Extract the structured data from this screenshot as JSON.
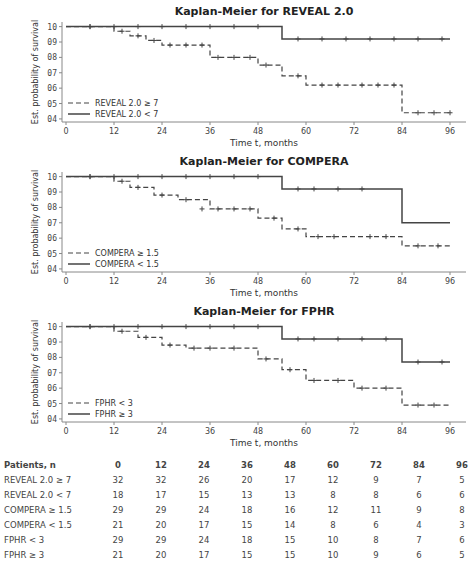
{
  "chart_data": [
    {
      "type": "step",
      "title": "Kaplan-Meier for REVEAL 2.0",
      "x_label": "Time t, months",
      "y_label": "Est. probability of survival",
      "xlim": [
        -1,
        100
      ],
      "ylim": [
        0.38,
        1.03
      ],
      "xticks": [
        0,
        12,
        24,
        36,
        48,
        60,
        72,
        84,
        96
      ],
      "yticks": [
        {
          "value": 0.4,
          "label": "04"
        },
        {
          "value": 0.5,
          "label": "05"
        },
        {
          "value": 0.6,
          "label": "06"
        },
        {
          "value": 0.7,
          "label": "07"
        },
        {
          "value": 0.8,
          "label": "08"
        },
        {
          "value": 0.9,
          "label": "09"
        },
        {
          "value": 1.0,
          "label": "10"
        }
      ],
      "grid": false,
      "legend": "lower left",
      "series": [
        {
          "name": "REVEAL 2.0 ≥ 7",
          "type": "step",
          "line_style": "dashed",
          "color": "#444444",
          "x": [
            0,
            12,
            12,
            16,
            16,
            20,
            20,
            24,
            24,
            36,
            36,
            48,
            48,
            54,
            54,
            60,
            60,
            72,
            72,
            84,
            84,
            96
          ],
          "values": [
            1.0,
            1.0,
            0.97,
            0.97,
            0.94,
            0.94,
            0.91,
            0.91,
            0.88,
            0.88,
            0.8,
            0.8,
            0.75,
            0.75,
            0.68,
            0.68,
            0.62,
            0.62,
            0.62,
            0.62,
            0.44,
            0.44
          ]
        },
        {
          "type": "scatter",
          "marker": "plus",
          "color": "#444444",
          "x": [
            6,
            14,
            18,
            22,
            26,
            30,
            34,
            38,
            42,
            46,
            50,
            58,
            64,
            68,
            74,
            78,
            82,
            88,
            92,
            96
          ],
          "values": [
            1.0,
            0.97,
            0.94,
            0.91,
            0.88,
            0.88,
            0.88,
            0.8,
            0.8,
            0.8,
            0.75,
            0.68,
            0.62,
            0.62,
            0.62,
            0.62,
            0.62,
            0.44,
            0.44,
            0.44
          ]
        },
        {
          "name": "REVEAL 2.0 < 7",
          "type": "step",
          "line_style": "solid",
          "color": "#444444",
          "x": [
            0,
            54,
            54,
            96
          ],
          "values": [
            1.0,
            1.0,
            0.92,
            0.92
          ]
        },
        {
          "type": "scatter",
          "marker": "plus",
          "color": "#444444",
          "x": [
            6,
            12,
            18,
            24,
            30,
            36,
            42,
            48,
            58,
            64,
            70,
            76,
            82,
            88,
            94
          ],
          "values": [
            1.0,
            1.0,
            1.0,
            1.0,
            1.0,
            1.0,
            1.0,
            1.0,
            0.92,
            0.92,
            0.92,
            0.92,
            0.92,
            0.92,
            0.92
          ]
        }
      ]
    },
    {
      "type": "step",
      "title": "Kaplan-Meier for COMPERA",
      "x_label": "Time t, months",
      "y_label": "Est. probability of survival",
      "xlim": [
        -1,
        100
      ],
      "ylim": [
        0.38,
        1.03
      ],
      "xticks": [
        0,
        12,
        24,
        36,
        48,
        60,
        72,
        84,
        96
      ],
      "yticks": [
        {
          "value": 0.4,
          "label": "04"
        },
        {
          "value": 0.5,
          "label": "05"
        },
        {
          "value": 0.6,
          "label": "06"
        },
        {
          "value": 0.7,
          "label": "07"
        },
        {
          "value": 0.8,
          "label": "08"
        },
        {
          "value": 0.9,
          "label": "09"
        },
        {
          "value": 1.0,
          "label": "10"
        }
      ],
      "grid": false,
      "legend": "lower left",
      "series": [
        {
          "name": "COMPERA ≥ 1.5",
          "type": "step",
          "line_style": "dashed",
          "color": "#444444",
          "x": [
            0,
            12,
            12,
            16,
            16,
            22,
            22,
            28,
            28,
            36,
            36,
            48,
            48,
            54,
            54,
            60,
            60,
            72,
            72,
            84,
            84,
            96
          ],
          "values": [
            1.0,
            1.0,
            0.97,
            0.97,
            0.93,
            0.93,
            0.88,
            0.88,
            0.85,
            0.85,
            0.79,
            0.79,
            0.73,
            0.73,
            0.66,
            0.66,
            0.61,
            0.61,
            0.61,
            0.61,
            0.55,
            0.55
          ]
        },
        {
          "type": "scatter",
          "marker": "plus",
          "color": "#444444",
          "x": [
            6,
            14,
            18,
            24,
            30,
            34,
            38,
            42,
            46,
            52,
            58,
            63,
            67,
            76,
            80,
            88,
            93
          ],
          "values": [
            1.0,
            0.97,
            0.93,
            0.88,
            0.85,
            0.79,
            0.79,
            0.79,
            0.79,
            0.73,
            0.66,
            0.61,
            0.61,
            0.61,
            0.61,
            0.55,
            0.55
          ]
        },
        {
          "name": "COMPERA < 1.5",
          "type": "step",
          "line_style": "solid",
          "color": "#444444",
          "x": [
            0,
            54,
            54,
            84,
            84,
            96
          ],
          "values": [
            1.0,
            1.0,
            0.92,
            0.92,
            0.7,
            0.7
          ]
        },
        {
          "type": "scatter",
          "marker": "plus",
          "color": "#444444",
          "x": [
            6,
            12,
            18,
            24,
            30,
            36,
            42,
            48,
            58,
            62,
            68,
            74
          ],
          "values": [
            1.0,
            1.0,
            1.0,
            1.0,
            1.0,
            1.0,
            1.0,
            1.0,
            0.92,
            0.92,
            0.92,
            0.92
          ]
        }
      ]
    },
    {
      "type": "step",
      "title": "Kaplan-Meier for FPHR",
      "x_label": "Time t, months",
      "y_label": "Est. probability of survival",
      "xlim": [
        -1,
        100
      ],
      "ylim": [
        0.38,
        1.03
      ],
      "xticks": [
        0,
        12,
        24,
        36,
        48,
        60,
        72,
        84,
        96
      ],
      "yticks": [
        {
          "value": 0.4,
          "label": "04"
        },
        {
          "value": 0.5,
          "label": "05"
        },
        {
          "value": 0.6,
          "label": "06"
        },
        {
          "value": 0.7,
          "label": "07"
        },
        {
          "value": 0.8,
          "label": "08"
        },
        {
          "value": 0.9,
          "label": "09"
        },
        {
          "value": 1.0,
          "label": "10"
        }
      ],
      "grid": false,
      "legend": "lower left",
      "series": [
        {
          "name": "FPHR < 3",
          "type": "step",
          "line_style": "dashed",
          "color": "#444444",
          "x": [
            0,
            12,
            12,
            18,
            18,
            24,
            24,
            30,
            30,
            48,
            48,
            54,
            54,
            60,
            60,
            72,
            72,
            84,
            84,
            96
          ],
          "values": [
            1.0,
            1.0,
            0.97,
            0.97,
            0.93,
            0.93,
            0.88,
            0.88,
            0.86,
            0.86,
            0.79,
            0.79,
            0.72,
            0.72,
            0.65,
            0.65,
            0.6,
            0.6,
            0.49,
            0.49
          ]
        },
        {
          "type": "scatter",
          "marker": "plus",
          "color": "#444444",
          "x": [
            6,
            14,
            20,
            26,
            32,
            36,
            42,
            50,
            56,
            62,
            68,
            74,
            80,
            88,
            92
          ],
          "values": [
            1.0,
            0.97,
            0.93,
            0.88,
            0.86,
            0.86,
            0.86,
            0.79,
            0.72,
            0.65,
            0.65,
            0.6,
            0.6,
            0.49,
            0.49
          ]
        },
        {
          "name": "FPHR ≥ 3",
          "type": "step",
          "line_style": "solid",
          "color": "#444444",
          "x": [
            0,
            54,
            54,
            84,
            84,
            96
          ],
          "values": [
            1.0,
            1.0,
            0.92,
            0.92,
            0.77,
            0.77
          ]
        },
        {
          "type": "scatter",
          "marker": "plus",
          "color": "#444444",
          "x": [
            6,
            12,
            18,
            24,
            30,
            36,
            42,
            48,
            58,
            62,
            68,
            74,
            80,
            88,
            94
          ],
          "values": [
            1.0,
            1.0,
            1.0,
            1.0,
            1.0,
            1.0,
            1.0,
            1.0,
            0.92,
            0.92,
            0.92,
            0.92,
            0.92,
            0.77,
            0.77
          ]
        }
      ]
    },
    {
      "type": "table",
      "header": "Patients, n",
      "color": "#444444",
      "columns": [
        0,
        12,
        24,
        36,
        48,
        60,
        72,
        84,
        96
      ],
      "rows": [
        {
          "name": "REVEAL 2.0 ≥ 7",
          "values": [
            32,
            32,
            26,
            20,
            17,
            12,
            9,
            7,
            5
          ]
        },
        {
          "name": "REVEAL 2.0 < 7",
          "values": [
            18,
            17,
            15,
            13,
            13,
            8,
            8,
            6,
            6
          ]
        },
        {
          "name": "COMPERA ≥ 1.5",
          "values": [
            29,
            29,
            24,
            18,
            16,
            12,
            11,
            9,
            8
          ]
        },
        {
          "name": "COMPERA < 1.5",
          "values": [
            21,
            20,
            17,
            15,
            14,
            8,
            6,
            4,
            3
          ]
        },
        {
          "name": "FPHR < 3",
          "values": [
            29,
            29,
            24,
            18,
            15,
            10,
            8,
            7,
            6
          ]
        },
        {
          "name": "FPHR ≥ 3",
          "values": [
            21,
            20,
            17,
            15,
            15,
            10,
            9,
            6,
            5
          ]
        }
      ]
    }
  ]
}
